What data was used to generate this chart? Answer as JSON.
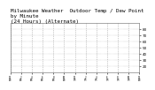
{
  "title": "Milwaukee Weather  Outdoor Temp / Dew Point\nby Minute\n(24 Hours) (Alternate)",
  "title_fontsize": 4.2,
  "background_color": "#ffffff",
  "plot_bg_color": "#ffffff",
  "grid_color": "#999999",
  "red_color": "#cc0000",
  "blue_color": "#0000cc",
  "ylim": [
    10,
    90
  ],
  "yticks": [
    20,
    30,
    40,
    50,
    60,
    70,
    80
  ],
  "num_points": 1440,
  "seed": 17,
  "marker_size": 0.4
}
